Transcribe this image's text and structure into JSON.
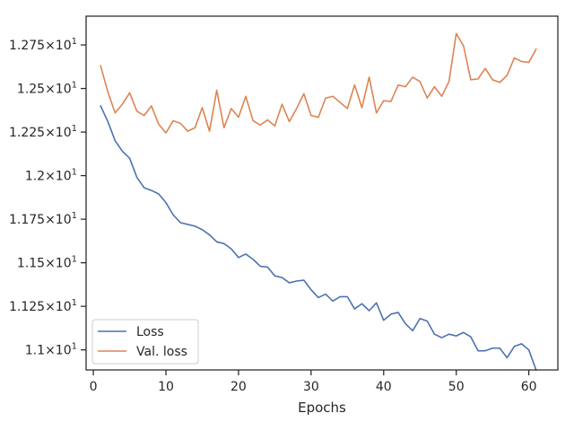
{
  "chart_data": {
    "type": "line",
    "title": "",
    "xlabel": "Epochs",
    "ylabel": "",
    "xlim": [
      -1.0,
      64.0
    ],
    "ylim": [
      10.885,
      12.915
    ],
    "xticks": [
      {
        "value": 0,
        "label": "0"
      },
      {
        "value": 10,
        "label": "10"
      },
      {
        "value": 20,
        "label": "20"
      },
      {
        "value": 30,
        "label": "30"
      },
      {
        "value": 40,
        "label": "40"
      },
      {
        "value": 50,
        "label": "50"
      },
      {
        "value": 60,
        "label": "60"
      }
    ],
    "yticks": [
      {
        "value": 11.0,
        "mantissa": "1.1",
        "suffix": "×10",
        "exp": "1"
      },
      {
        "value": 11.25,
        "mantissa": "1.125",
        "suffix": "×10",
        "exp": "1"
      },
      {
        "value": 11.5,
        "mantissa": "1.15",
        "suffix": "×10",
        "exp": "1"
      },
      {
        "value": 11.75,
        "mantissa": "1.175",
        "suffix": "×10",
        "exp": "1"
      },
      {
        "value": 12.0,
        "mantissa": "1.2",
        "suffix": "×10",
        "exp": "1"
      },
      {
        "value": 12.25,
        "mantissa": "1.225",
        "suffix": "×10",
        "exp": "1"
      },
      {
        "value": 12.5,
        "mantissa": "1.25",
        "suffix": "×10",
        "exp": "1"
      },
      {
        "value": 12.75,
        "mantissa": "1.275",
        "suffix": "×10",
        "exp": "1"
      }
    ],
    "grid": false,
    "legend_position": "bottom-left",
    "x": [
      1,
      2,
      3,
      4,
      5,
      6,
      7,
      8,
      9,
      10,
      11,
      12,
      13,
      14,
      15,
      16,
      17,
      18,
      19,
      20,
      21,
      22,
      23,
      24,
      25,
      26,
      27,
      28,
      29,
      30,
      31,
      32,
      33,
      34,
      35,
      36,
      37,
      38,
      39,
      40,
      41,
      42,
      43,
      44,
      45,
      46,
      47,
      48,
      49,
      50,
      51,
      52,
      53,
      54,
      55,
      56,
      57,
      58,
      59,
      60,
      61
    ],
    "series": [
      {
        "name": "Loss",
        "color": "#4c72b0",
        "values": [
          12.4,
          12.31,
          12.2,
          12.14,
          12.1,
          11.99,
          11.93,
          11.915,
          11.895,
          11.845,
          11.775,
          11.73,
          11.72,
          11.71,
          11.69,
          11.66,
          11.62,
          11.61,
          11.58,
          11.53,
          11.55,
          11.52,
          11.48,
          11.475,
          11.425,
          11.415,
          11.385,
          11.395,
          11.4,
          11.345,
          11.3,
          11.32,
          11.28,
          11.305,
          11.305,
          11.235,
          11.265,
          11.225,
          11.27,
          11.17,
          11.205,
          11.215,
          11.15,
          11.11,
          11.18,
          11.165,
          11.09,
          11.07,
          11.09,
          11.08,
          11.1,
          11.075,
          10.995,
          10.995,
          11.01,
          11.01,
          10.955,
          11.02,
          11.035,
          11.0,
          10.885
        ]
      },
      {
        "name": "Val. loss",
        "color": "#dd8452",
        "values": [
          12.63,
          12.48,
          12.36,
          12.41,
          12.475,
          12.37,
          12.345,
          12.4,
          12.295,
          12.245,
          12.315,
          12.3,
          12.255,
          12.275,
          12.39,
          12.255,
          12.49,
          12.275,
          12.385,
          12.335,
          12.455,
          12.315,
          12.29,
          12.32,
          12.285,
          12.41,
          12.31,
          12.385,
          12.47,
          12.345,
          12.335,
          12.445,
          12.455,
          12.42,
          12.385,
          12.52,
          12.39,
          12.565,
          12.36,
          12.43,
          12.425,
          12.52,
          12.51,
          12.565,
          12.54,
          12.445,
          12.51,
          12.455,
          12.54,
          12.815,
          12.745,
          12.55,
          12.555,
          12.615,
          12.55,
          12.535,
          12.575,
          12.675,
          12.655,
          12.65,
          12.725
        ]
      }
    ]
  }
}
